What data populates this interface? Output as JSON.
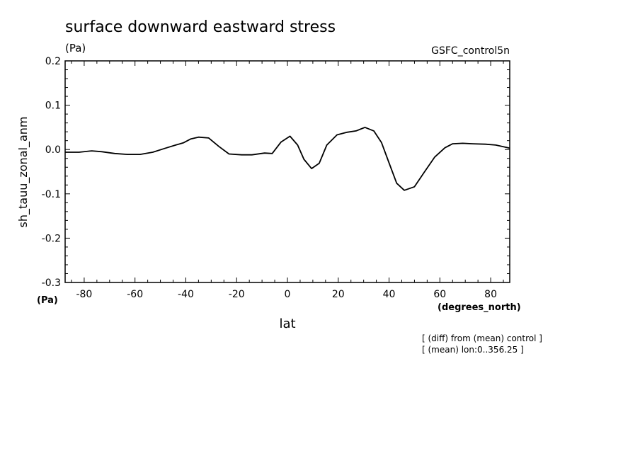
{
  "chart_data": {
    "type": "line",
    "title": "surface downward eastward stress",
    "subtitle_unit": "(Pa)",
    "dataset_label": "GSFC_control5n",
    "ylabel": "sh_tauu_zonal_anm",
    "y_unit": "(Pa)",
    "xlabel": "lat",
    "x_unit": "(degrees_north)",
    "notes": [
      "[ (diff) from (mean) control ]",
      "[ (mean) lon:0..356.25 ]"
    ],
    "xlim": [
      -87.5,
      87.5
    ],
    "ylim": [
      -0.3,
      0.2
    ],
    "x_ticks": [
      -80,
      -60,
      -40,
      -20,
      0,
      20,
      40,
      60,
      80
    ],
    "x_tick_labels": [
      "-80",
      "-60",
      "-40",
      "-20",
      "0",
      "20",
      "40",
      "60",
      "80"
    ],
    "y_ticks": [
      -0.3,
      -0.2,
      -0.1,
      0.0,
      0.1,
      0.2
    ],
    "y_tick_labels": [
      "-0.3",
      "-0.2",
      "-0.1",
      "0.0",
      "0.1",
      "0.2"
    ],
    "grid": false,
    "line_color": "#000000",
    "series": [
      {
        "x": [
          -87.5,
          -82,
          -77,
          -73,
          -68,
          -63,
          -58,
          -53,
          -48,
          -44,
          -41,
          -38,
          -35,
          -31,
          -27,
          -23,
          -18,
          -14,
          -9,
          -6,
          -2.5,
          1,
          4,
          6.5,
          9.5,
          12.5,
          15.5,
          19.5,
          23.5,
          27,
          30.5,
          34,
          37,
          40,
          43,
          46,
          50,
          54,
          58,
          62,
          65,
          69,
          73,
          78,
          82,
          87.5
        ],
        "y": [
          -0.006,
          -0.006,
          -0.003,
          -0.005,
          -0.009,
          -0.011,
          -0.011,
          -0.006,
          0.003,
          0.01,
          0.015,
          0.024,
          0.028,
          0.026,
          0.007,
          -0.01,
          -0.012,
          -0.012,
          -0.008,
          -0.009,
          0.017,
          0.03,
          0.01,
          -0.022,
          -0.043,
          -0.031,
          0.01,
          0.033,
          0.039,
          0.042,
          0.05,
          0.042,
          0.016,
          -0.03,
          -0.076,
          -0.092,
          -0.084,
          -0.05,
          -0.017,
          0.004,
          0.013,
          0.014,
          0.013,
          0.012,
          0.01,
          0.003
        ]
      }
    ]
  }
}
